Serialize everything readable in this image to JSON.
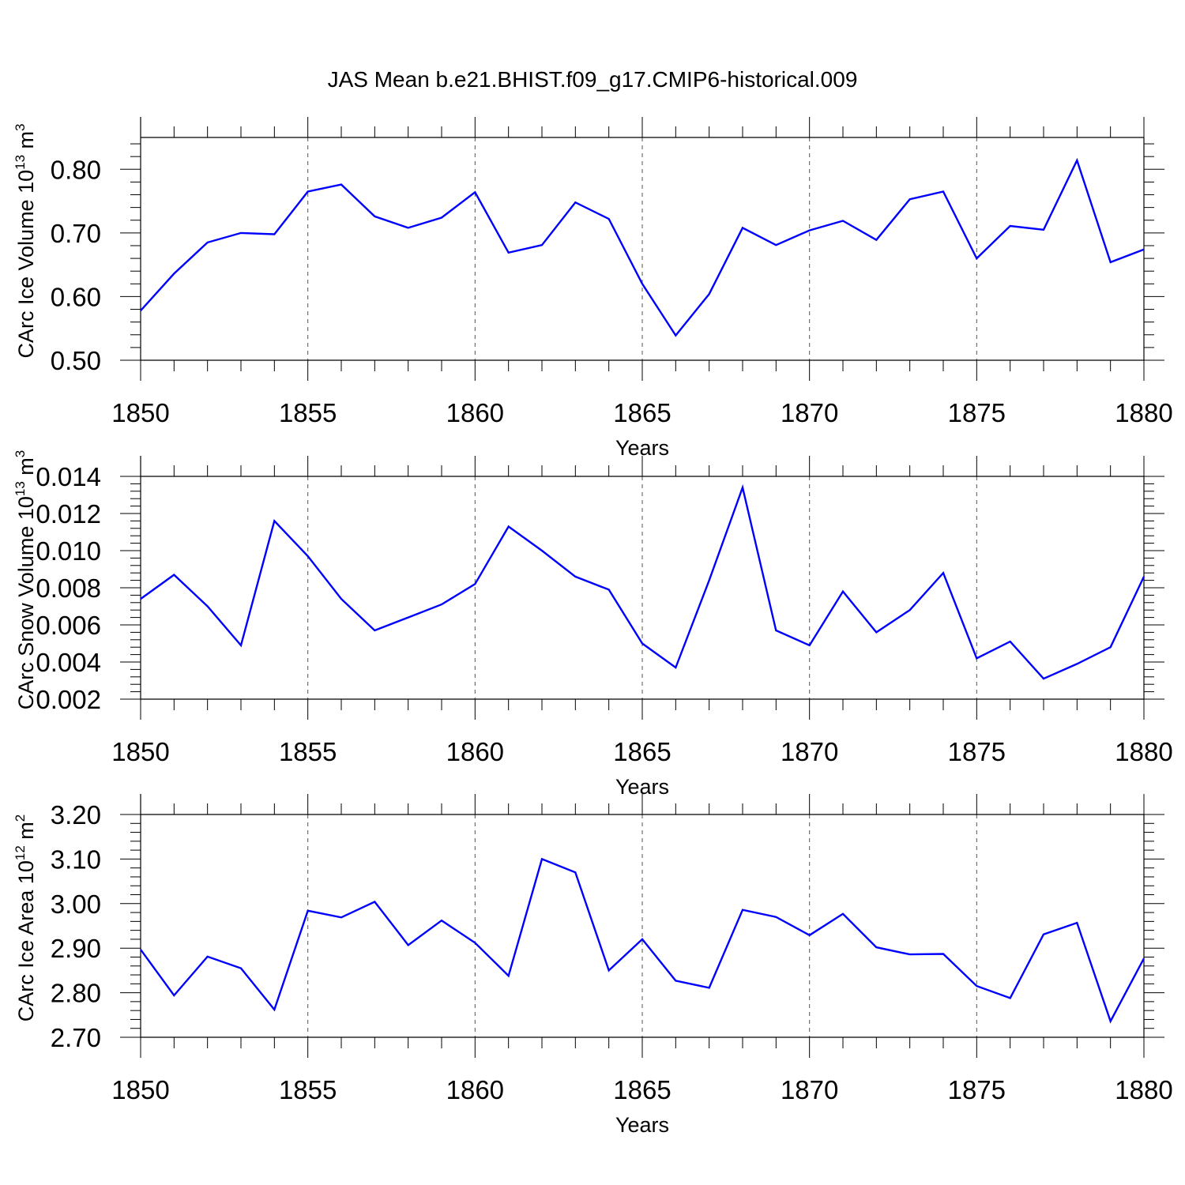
{
  "figure": {
    "title": "JAS Mean b.e21.BHIST.f09_g17.CMIP6-historical.009"
  },
  "line_color": "#0000ff",
  "chart_data": [
    {
      "type": "line",
      "xlabel": "Years",
      "ylabel_prefix": "CArc Ice Volume 10",
      "ylabel_exp": "13",
      "ylabel_suffix": " m",
      "ylabel_unit_exp": "3",
      "xlim": [
        1850,
        1880
      ],
      "ylim": [
        0.5,
        0.85
      ],
      "xticks": [
        "1850",
        "1855",
        "1860",
        "1865",
        "1870",
        "1875",
        "1880"
      ],
      "yticks": [
        "0.50",
        "0.60",
        "0.70",
        "0.80"
      ],
      "grid": "vertical dashed at major x ticks",
      "x": [
        1850,
        1851,
        1852,
        1853,
        1854,
        1855,
        1856,
        1857,
        1858,
        1859,
        1860,
        1861,
        1862,
        1863,
        1864,
        1865,
        1866,
        1867,
        1868,
        1869,
        1870,
        1871,
        1872,
        1873,
        1874,
        1875,
        1876,
        1877,
        1878,
        1879,
        1880
      ],
      "y": [
        0.578,
        0.636,
        0.685,
        0.7,
        0.698,
        0.765,
        0.776,
        0.726,
        0.708,
        0.724,
        0.764,
        0.669,
        0.681,
        0.748,
        0.722,
        0.62,
        0.539,
        0.604,
        0.708,
        0.681,
        0.704,
        0.719,
        0.689,
        0.753,
        0.765,
        0.66,
        0.711,
        0.705,
        0.814,
        0.654,
        0.674
      ]
    },
    {
      "type": "line",
      "xlabel": "Years",
      "ylabel_prefix": "CArc Snow Volume 10",
      "ylabel_exp": "13",
      "ylabel_suffix": " m",
      "ylabel_unit_exp": "3",
      "xlim": [
        1850,
        1880
      ],
      "ylim": [
        0.002,
        0.014
      ],
      "xticks": [
        "1850",
        "1855",
        "1860",
        "1865",
        "1870",
        "1875",
        "1880"
      ],
      "yticks": [
        "0.002",
        "0.004",
        "0.006",
        "0.008",
        "0.010",
        "0.012",
        "0.014"
      ],
      "grid": "vertical dashed at major x ticks",
      "x": [
        1850,
        1851,
        1852,
        1853,
        1854,
        1855,
        1856,
        1857,
        1858,
        1859,
        1860,
        1861,
        1862,
        1863,
        1864,
        1865,
        1866,
        1867,
        1868,
        1869,
        1870,
        1871,
        1872,
        1873,
        1874,
        1875,
        1876,
        1877,
        1878,
        1879,
        1880
      ],
      "y": [
        0.0074,
        0.0087,
        0.007,
        0.0049,
        0.0116,
        0.0097,
        0.0074,
        0.0057,
        0.0064,
        0.0071,
        0.0082,
        0.0113,
        0.01,
        0.0086,
        0.0079,
        0.005,
        0.0037,
        0.0084,
        0.0134,
        0.0057,
        0.0049,
        0.0078,
        0.0056,
        0.0068,
        0.0088,
        0.0042,
        0.0051,
        0.0031,
        0.0039,
        0.0048,
        0.0086
      ]
    },
    {
      "type": "line",
      "xlabel": "Years",
      "ylabel_prefix": "CArc Ice Area 10",
      "ylabel_exp": "12",
      "ylabel_suffix": " m",
      "ylabel_unit_exp": "2",
      "xlim": [
        1850,
        1880
      ],
      "ylim": [
        2.7,
        3.2
      ],
      "xticks": [
        "1850",
        "1855",
        "1860",
        "1865",
        "1870",
        "1875",
        "1880"
      ],
      "yticks": [
        "2.70",
        "2.80",
        "2.90",
        "3.00",
        "3.10",
        "3.20"
      ],
      "grid": "vertical dashed at major x ticks",
      "x": [
        1850,
        1851,
        1852,
        1853,
        1854,
        1855,
        1856,
        1857,
        1858,
        1859,
        1860,
        1861,
        1862,
        1863,
        1864,
        1865,
        1866,
        1867,
        1868,
        1869,
        1870,
        1871,
        1872,
        1873,
        1874,
        1875,
        1876,
        1877,
        1878,
        1879,
        1880
      ],
      "y": [
        2.897,
        2.794,
        2.881,
        2.855,
        2.762,
        2.984,
        2.969,
        3.004,
        2.907,
        2.962,
        2.912,
        2.838,
        3.1,
        3.07,
        2.85,
        2.92,
        2.827,
        2.811,
        2.986,
        2.97,
        2.929,
        2.977,
        2.902,
        2.886,
        2.887,
        2.815,
        2.788,
        2.931,
        2.957,
        2.736,
        2.877
      ]
    }
  ]
}
